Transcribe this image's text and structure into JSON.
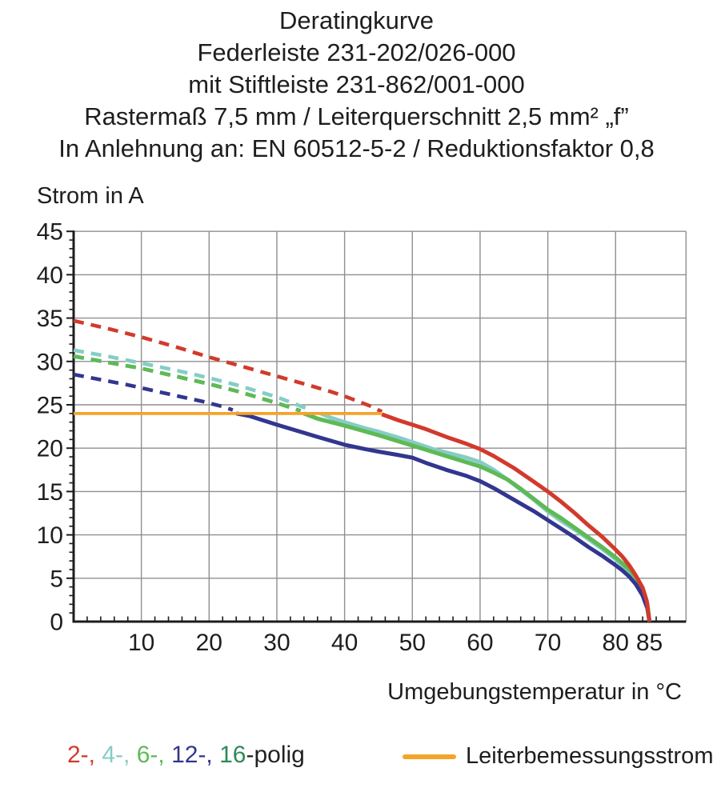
{
  "title": {
    "lines": [
      "Deratingkurve",
      "Federleiste 231-202/026-000",
      "mit Stiftleiste 231-862/001-000",
      "Rastermaß 7,5 mm / Leiterquerschnitt 2,5 mm² „f”",
      "In Anlehnung an: EN 60512-5-2 / Reduktionsfaktor 0,8"
    ]
  },
  "chart_data": {
    "type": "line",
    "title": "Deratingkurve",
    "ylabel": "Strom in A",
    "xlabel": "Umgebungstemperatur in °C",
    "xlim": [
      0,
      90.4
    ],
    "ylim": [
      0,
      45
    ],
    "x_tick_labels": [
      10,
      20,
      30,
      40,
      50,
      60,
      70,
      80,
      85
    ],
    "y_tick_labels": [
      0,
      5,
      10,
      15,
      20,
      25,
      30,
      35,
      40,
      45
    ],
    "grid_x": [
      10,
      20,
      30,
      40,
      50,
      60,
      70,
      80,
      90.4
    ],
    "grid_y": [
      5,
      10,
      15,
      20,
      25,
      30,
      35,
      40,
      45
    ],
    "minor_tick_step_x": 2,
    "minor_tick_step_y": 1,
    "grid_on": true,
    "grid_color": "#8f8f8f",
    "axis_color": "#1c1c1c",
    "legend_position": "bottom",
    "series": [
      {
        "name": "2-polig",
        "color": "#d23a2c",
        "draw_order": 5,
        "dashed": [
          [
            0,
            34.7
          ],
          [
            5,
            33.8
          ],
          [
            10,
            32.8
          ],
          [
            15,
            31.7
          ],
          [
            20,
            30.5
          ],
          [
            25,
            29.4
          ],
          [
            30,
            28.3
          ],
          [
            35,
            27.2
          ],
          [
            38,
            26.5
          ],
          [
            40,
            26.0
          ],
          [
            42,
            25.4
          ],
          [
            44,
            24.8
          ],
          [
            45.5,
            24.2
          ]
        ],
        "solid": [
          [
            45.5,
            23.9
          ],
          [
            48,
            23.2
          ],
          [
            50,
            22.7
          ],
          [
            52,
            22.2
          ],
          [
            55,
            21.3
          ],
          [
            58,
            20.5
          ],
          [
            60,
            19.9
          ],
          [
            62,
            19.1
          ],
          [
            65,
            17.7
          ],
          [
            68,
            16.1
          ],
          [
            70,
            15.0
          ],
          [
            72,
            13.8
          ],
          [
            74,
            12.5
          ],
          [
            76,
            11.1
          ],
          [
            78,
            9.8
          ],
          [
            80,
            8.3
          ],
          [
            81,
            7.5
          ],
          [
            82,
            6.5
          ],
          [
            83,
            5.3
          ],
          [
            84,
            3.9
          ],
          [
            84.6,
            2.4
          ],
          [
            85,
            0
          ]
        ]
      },
      {
        "name": "4-polig",
        "color": "#85cdc6",
        "draw_order": 2,
        "dashed": [
          [
            0,
            31.3
          ],
          [
            5,
            30.6
          ],
          [
            10,
            29.8
          ],
          [
            15,
            29.0
          ],
          [
            20,
            28.1
          ],
          [
            24,
            27.3
          ],
          [
            27,
            26.6
          ],
          [
            30,
            25.9
          ],
          [
            33,
            25.0
          ],
          [
            35,
            24.4
          ]
        ],
        "solid": [
          [
            36.5,
            24.0
          ],
          [
            38,
            23.5
          ],
          [
            40,
            23.0
          ],
          [
            43,
            22.3
          ],
          [
            45,
            21.9
          ],
          [
            48,
            21.2
          ],
          [
            50,
            20.7
          ],
          [
            53,
            19.9
          ],
          [
            55,
            19.5
          ],
          [
            58,
            18.9
          ],
          [
            60,
            18.4
          ],
          [
            62,
            17.5
          ],
          [
            64,
            16.4
          ],
          [
            66,
            15.2
          ],
          [
            68,
            14.0
          ],
          [
            70,
            12.7
          ],
          [
            72,
            11.6
          ],
          [
            74,
            10.6
          ],
          [
            76,
            9.5
          ],
          [
            78,
            8.4
          ],
          [
            80,
            7.2
          ],
          [
            82,
            5.8
          ],
          [
            83,
            4.9
          ],
          [
            84,
            3.6
          ],
          [
            84.7,
            1.9
          ],
          [
            85,
            0
          ]
        ]
      },
      {
        "name": "6-polig",
        "color": "#5eba54",
        "draw_order": 3,
        "dashed": [
          [
            0,
            30.6
          ],
          [
            5,
            29.9
          ],
          [
            10,
            29.2
          ],
          [
            15,
            28.3
          ],
          [
            20,
            27.4
          ],
          [
            24,
            26.6
          ],
          [
            27,
            25.9
          ],
          [
            30,
            25.2
          ],
          [
            32,
            24.7
          ],
          [
            33.5,
            24.3
          ]
        ],
        "solid": [
          [
            34,
            24.0
          ],
          [
            36,
            23.4
          ],
          [
            40,
            22.6
          ],
          [
            45,
            21.5
          ],
          [
            50,
            20.3
          ],
          [
            55,
            19.1
          ],
          [
            60,
            17.9
          ],
          [
            62,
            17.2
          ],
          [
            64,
            16.4
          ],
          [
            66,
            15.3
          ],
          [
            68,
            14.1
          ],
          [
            70,
            12.9
          ],
          [
            72,
            11.9
          ],
          [
            74,
            10.8
          ],
          [
            76,
            9.7
          ],
          [
            78,
            8.6
          ],
          [
            80,
            7.4
          ],
          [
            82,
            6.0
          ],
          [
            83,
            5.1
          ],
          [
            84,
            3.7
          ],
          [
            84.7,
            2.0
          ],
          [
            85,
            0
          ]
        ]
      },
      {
        "name": "12-polig",
        "color": "#32368f",
        "draw_order": 4,
        "dashed": [
          [
            0,
            28.5
          ],
          [
            4,
            27.9
          ],
          [
            8,
            27.3
          ],
          [
            12,
            26.6
          ],
          [
            16,
            25.9
          ],
          [
            19,
            25.4
          ],
          [
            22,
            24.8
          ],
          [
            23.5,
            24.4
          ]
        ],
        "solid": [
          [
            24,
            24.0
          ],
          [
            26,
            23.7
          ],
          [
            28,
            23.2
          ],
          [
            30,
            22.7
          ],
          [
            33,
            22.0
          ],
          [
            36,
            21.3
          ],
          [
            40,
            20.4
          ],
          [
            43,
            19.9
          ],
          [
            45,
            19.6
          ],
          [
            48,
            19.2
          ],
          [
            50,
            18.9
          ],
          [
            52,
            18.3
          ],
          [
            55,
            17.5
          ],
          [
            58,
            16.8
          ],
          [
            60,
            16.2
          ],
          [
            62,
            15.4
          ],
          [
            64,
            14.5
          ],
          [
            66,
            13.6
          ],
          [
            68,
            12.7
          ],
          [
            70,
            11.7
          ],
          [
            72,
            10.7
          ],
          [
            74,
            9.7
          ],
          [
            76,
            8.6
          ],
          [
            78,
            7.6
          ],
          [
            80,
            6.5
          ],
          [
            81,
            5.9
          ],
          [
            82,
            5.2
          ],
          [
            83,
            4.3
          ],
          [
            84,
            3.0
          ],
          [
            84.7,
            1.5
          ],
          [
            85,
            0
          ]
        ]
      },
      {
        "name": "16-polig",
        "color": "#2b8a57",
        "draw_order": 1,
        "overlaps": "6-polig",
        "dashed": [
          [
            0,
            30.6
          ],
          [
            5,
            29.9
          ],
          [
            10,
            29.2
          ],
          [
            15,
            28.3
          ],
          [
            20,
            27.4
          ],
          [
            24,
            26.6
          ],
          [
            27,
            25.9
          ],
          [
            30,
            25.2
          ],
          [
            32,
            24.7
          ],
          [
            33.5,
            24.3
          ]
        ],
        "solid": [
          [
            34,
            24.0
          ],
          [
            36,
            23.4
          ],
          [
            40,
            22.6
          ],
          [
            45,
            21.5
          ],
          [
            50,
            20.3
          ],
          [
            55,
            19.1
          ],
          [
            60,
            17.9
          ],
          [
            62,
            17.2
          ],
          [
            64,
            16.4
          ],
          [
            66,
            15.3
          ],
          [
            68,
            14.1
          ],
          [
            70,
            12.9
          ],
          [
            72,
            11.9
          ],
          [
            74,
            10.8
          ],
          [
            76,
            9.7
          ],
          [
            78,
            8.6
          ],
          [
            80,
            7.4
          ],
          [
            82,
            6.0
          ],
          [
            83,
            5.1
          ],
          [
            84,
            3.7
          ],
          [
            84.7,
            2.0
          ],
          [
            85,
            0
          ]
        ]
      }
    ],
    "rated_current_line": {
      "label": "Leiterbemessungsstrom",
      "color": "#f4a42a",
      "y": 24,
      "x_range": [
        0,
        45.5
      ]
    }
  },
  "legend": {
    "pole_segments": [
      {
        "text": "2-,",
        "color": "#d23a2c"
      },
      {
        "text": " 4-,",
        "color": "#85cdc6"
      },
      {
        "text": " 6-,",
        "color": "#5eba54"
      },
      {
        "text": " 12-,",
        "color": "#32368f"
      },
      {
        "text": " 16",
        "color": "#2b8a57"
      },
      {
        "text": "-polig",
        "color": "#222222"
      }
    ],
    "rated": {
      "label": "Leiterbemessungsstrom",
      "color": "#f4a42a"
    }
  }
}
